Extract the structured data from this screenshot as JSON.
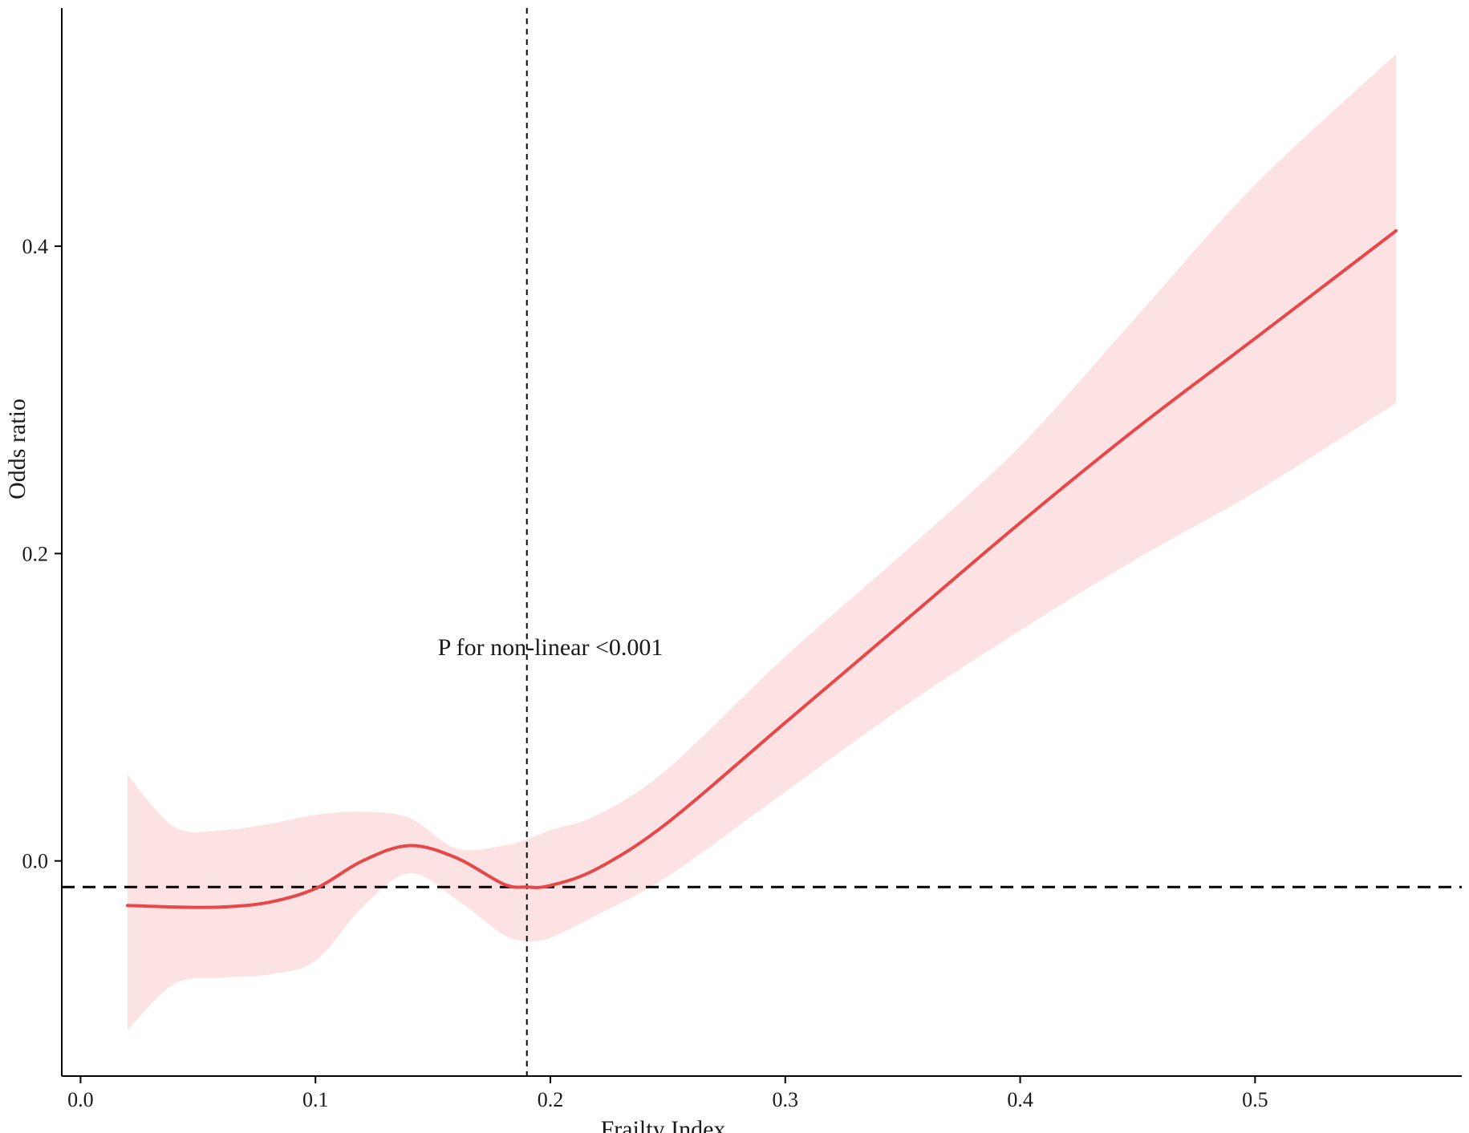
{
  "chart_data": {
    "type": "line",
    "title": "",
    "xlabel": "Frailty Index",
    "ylabel": "Odds ratio",
    "xlim": [
      -0.008,
      0.588
    ],
    "ylim": [
      -0.14,
      0.555
    ],
    "x_ticks": [
      0.0,
      0.1,
      0.2,
      0.3,
      0.4,
      0.5
    ],
    "x_tick_labels": [
      "0.0",
      "0.1",
      "0.2",
      "0.3",
      "0.4",
      "0.5"
    ],
    "y_ticks": [
      0.0,
      0.2,
      0.4
    ],
    "y_tick_labels": [
      "0.0",
      "0.2",
      "0.4"
    ],
    "grid": false,
    "annotation": "P for non-linear <0.001",
    "annotation_position": {
      "x": 0.2,
      "y": 0.134
    },
    "reference_line_y": -0.017,
    "reference_line_x": 0.19,
    "colors": {
      "curve": "#e8474a",
      "band": "#fde2e4",
      "reference": "#000000",
      "axis": "#000000"
    },
    "series": [
      {
        "x": [
          0.02,
          0.04,
          0.06,
          0.08,
          0.1,
          0.12,
          0.14,
          0.16,
          0.18,
          0.19,
          0.2,
          0.22,
          0.25,
          0.3,
          0.35,
          0.4,
          0.45,
          0.5,
          0.56
        ],
        "y": [
          -0.029,
          -0.03,
          -0.03,
          -0.027,
          -0.018,
          0.0,
          0.01,
          0.002,
          -0.015,
          -0.017,
          -0.016,
          -0.005,
          0.025,
          0.09,
          0.155,
          0.22,
          0.282,
          0.34,
          0.41
        ],
        "lower": [
          -0.11,
          -0.08,
          -0.076,
          -0.074,
          -0.065,
          -0.03,
          -0.008,
          -0.025,
          -0.048,
          -0.052,
          -0.05,
          -0.035,
          -0.01,
          0.045,
          0.1,
          0.15,
          0.197,
          0.24,
          0.298
        ],
        "upper": [
          0.056,
          0.022,
          0.02,
          0.024,
          0.03,
          0.032,
          0.028,
          0.008,
          0.01,
          0.014,
          0.02,
          0.03,
          0.06,
          0.133,
          0.2,
          0.27,
          0.355,
          0.44,
          0.525
        ]
      }
    ]
  }
}
